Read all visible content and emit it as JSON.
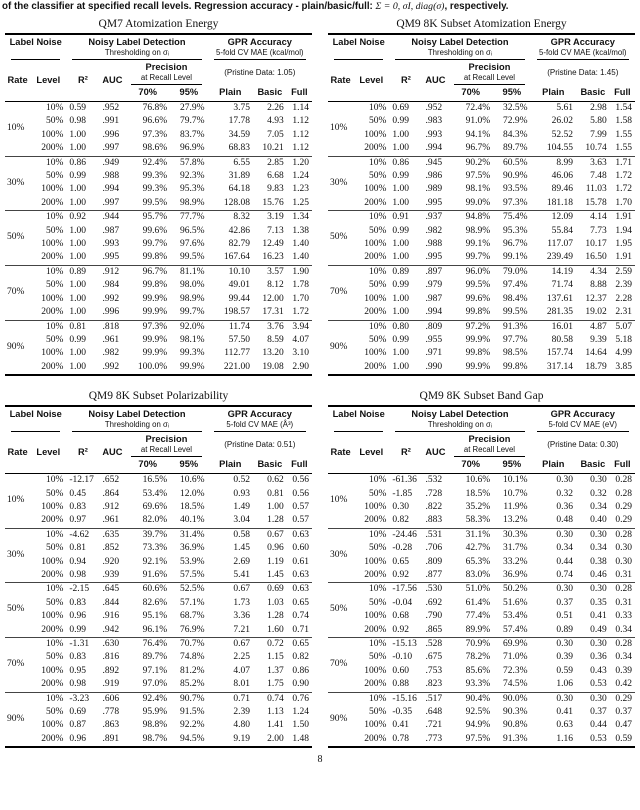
{
  "page": {
    "caption_part1": "of the classifier at specified recall levels. Regression accuracy - plain/basic/full: ",
    "caption_math": "Σ = 0, σI, diag(σ)",
    "caption_part2": ", respectively.",
    "page_number": "8"
  },
  "table_header": {
    "label_noise": "Label Noise",
    "noisy_label_detection": "Noisy Label Detection",
    "thresholding": "Thresholding on σᵢ",
    "gpr_accuracy": "GPR Accuracy",
    "mae_prefix": "5-fold CV MAE",
    "rate": "Rate",
    "level": "Level",
    "r2": "R²",
    "auc": "AUC",
    "precision": "Precision",
    "at_recall_level": "at Recall Level",
    "recall_70": "70%",
    "recall_95": "95%",
    "plain": "Plain",
    "basic": "Basic",
    "full": "Full"
  },
  "tables": [
    {
      "title": "QM7 Atomization Energy",
      "unit": "(kcal/mol)",
      "pristine": "(Pristine Data: 1.05)",
      "groups": [
        {
          "rate": "10%",
          "rows": [
            [
              "10%",
              "0.59",
              ".952",
              "76.8%",
              "27.9%",
              "3.75",
              "2.26",
              "1.14"
            ],
            [
              "50%",
              "0.98",
              ".991",
              "96.6%",
              "79.7%",
              "17.78",
              "4.93",
              "1.12"
            ],
            [
              "100%",
              "1.00",
              ".996",
              "97.3%",
              "83.7%",
              "34.59",
              "7.05",
              "1.12"
            ],
            [
              "200%",
              "1.00",
              ".997",
              "98.6%",
              "96.9%",
              "68.83",
              "10.21",
              "1.12"
            ]
          ]
        },
        {
          "rate": "30%",
          "rows": [
            [
              "10%",
              "0.86",
              ".949",
              "92.4%",
              "57.8%",
              "6.55",
              "2.85",
              "1.20"
            ],
            [
              "50%",
              "0.99",
              ".988",
              "99.3%",
              "92.3%",
              "31.89",
              "6.68",
              "1.24"
            ],
            [
              "100%",
              "1.00",
              ".994",
              "99.3%",
              "95.3%",
              "64.18",
              "9.83",
              "1.23"
            ],
            [
              "200%",
              "1.00",
              ".997",
              "99.5%",
              "98.9%",
              "128.08",
              "15.76",
              "1.25"
            ]
          ]
        },
        {
          "rate": "50%",
          "rows": [
            [
              "10%",
              "0.92",
              ".944",
              "95.7%",
              "77.7%",
              "8.32",
              "3.19",
              "1.34"
            ],
            [
              "50%",
              "1.00",
              ".987",
              "99.6%",
              "96.5%",
              "42.86",
              "7.13",
              "1.38"
            ],
            [
              "100%",
              "1.00",
              ".993",
              "99.7%",
              "97.6%",
              "82.79",
              "12.49",
              "1.40"
            ],
            [
              "200%",
              "1.00",
              ".995",
              "99.8%",
              "99.5%",
              "167.64",
              "16.23",
              "1.40"
            ]
          ]
        },
        {
          "rate": "70%",
          "rows": [
            [
              "10%",
              "0.89",
              ".912",
              "96.7%",
              "81.1%",
              "10.10",
              "3.57",
              "1.90"
            ],
            [
              "50%",
              "1.00",
              ".984",
              "99.8%",
              "98.0%",
              "49.01",
              "8.12",
              "1.78"
            ],
            [
              "100%",
              "1.00",
              ".992",
              "99.9%",
              "98.9%",
              "99.44",
              "12.00",
              "1.70"
            ],
            [
              "200%",
              "1.00",
              ".996",
              "99.9%",
              "99.7%",
              "198.57",
              "17.31",
              "1.72"
            ]
          ]
        },
        {
          "rate": "90%",
          "rows": [
            [
              "10%",
              "0.81",
              ".818",
              "97.3%",
              "92.0%",
              "11.74",
              "3.76",
              "3.94"
            ],
            [
              "50%",
              "0.99",
              ".961",
              "99.9%",
              "98.1%",
              "57.50",
              "8.59",
              "4.07"
            ],
            [
              "100%",
              "1.00",
              ".982",
              "99.9%",
              "99.3%",
              "112.77",
              "13.20",
              "3.10"
            ],
            [
              "200%",
              "1.00",
              ".992",
              "100.0%",
              "99.9%",
              "221.00",
              "19.08",
              "2.90"
            ]
          ]
        }
      ]
    },
    {
      "title": "QM9 8K Subset Atomization Energy",
      "unit": "(kcal/mol)",
      "pristine": "(Pristine Data: 1.45)",
      "groups": [
        {
          "rate": "10%",
          "rows": [
            [
              "10%",
              "0.69",
              ".952",
              "72.4%",
              "32.5%",
              "5.61",
              "2.98",
              "1.54"
            ],
            [
              "50%",
              "0.99",
              ".983",
              "91.0%",
              "72.9%",
              "26.02",
              "5.80",
              "1.58"
            ],
            [
              "100%",
              "1.00",
              ".993",
              "94.1%",
              "84.3%",
              "52.52",
              "7.99",
              "1.55"
            ],
            [
              "200%",
              "1.00",
              ".994",
              "96.7%",
              "89.7%",
              "104.55",
              "10.74",
              "1.55"
            ]
          ]
        },
        {
          "rate": "30%",
          "rows": [
            [
              "10%",
              "0.86",
              ".945",
              "90.2%",
              "60.5%",
              "8.99",
              "3.63",
              "1.71"
            ],
            [
              "50%",
              "0.99",
              ".986",
              "97.5%",
              "90.9%",
              "46.06",
              "7.48",
              "1.72"
            ],
            [
              "100%",
              "1.00",
              ".989",
              "98.1%",
              "93.5%",
              "89.46",
              "11.03",
              "1.72"
            ],
            [
              "200%",
              "1.00",
              ".995",
              "99.0%",
              "97.3%",
              "181.18",
              "15.78",
              "1.70"
            ]
          ]
        },
        {
          "rate": "50%",
          "rows": [
            [
              "10%",
              "0.91",
              ".937",
              "94.8%",
              "75.4%",
              "12.09",
              "4.14",
              "1.91"
            ],
            [
              "50%",
              "0.99",
              ".982",
              "98.9%",
              "95.3%",
              "55.84",
              "7.73",
              "1.94"
            ],
            [
              "100%",
              "1.00",
              ".988",
              "99.1%",
              "96.7%",
              "117.07",
              "10.17",
              "1.95"
            ],
            [
              "200%",
              "1.00",
              ".995",
              "99.7%",
              "99.1%",
              "239.49",
              "16.50",
              "1.91"
            ]
          ]
        },
        {
          "rate": "70%",
          "rows": [
            [
              "10%",
              "0.89",
              ".897",
              "96.0%",
              "79.0%",
              "14.19",
              "4.34",
              "2.59"
            ],
            [
              "50%",
              "0.99",
              ".979",
              "99.5%",
              "97.4%",
              "71.74",
              "8.88",
              "2.39"
            ],
            [
              "100%",
              "1.00",
              ".987",
              "99.6%",
              "98.4%",
              "137.61",
              "12.37",
              "2.28"
            ],
            [
              "200%",
              "1.00",
              ".994",
              "99.8%",
              "99.5%",
              "281.35",
              "19.02",
              "2.31"
            ]
          ]
        },
        {
          "rate": "90%",
          "rows": [
            [
              "10%",
              "0.80",
              ".809",
              "97.2%",
              "91.3%",
              "16.01",
              "4.87",
              "5.07"
            ],
            [
              "50%",
              "0.99",
              ".955",
              "99.9%",
              "97.7%",
              "80.58",
              "9.39",
              "5.18"
            ],
            [
              "100%",
              "1.00",
              ".971",
              "99.8%",
              "98.5%",
              "157.74",
              "14.64",
              "4.99"
            ],
            [
              "200%",
              "1.00",
              ".990",
              "99.9%",
              "99.8%",
              "317.14",
              "18.79",
              "3.85"
            ]
          ]
        }
      ]
    },
    {
      "title": "QM9 8K Subset Polarizability",
      "unit": "(Å³)",
      "pristine": "(Pristine Data: 0.51)",
      "groups": [
        {
          "rate": "10%",
          "rows": [
            [
              "10%",
              "-12.17",
              ".652",
              "16.5%",
              "10.6%",
              "0.52",
              "0.62",
              "0.56"
            ],
            [
              "50%",
              "0.45",
              ".864",
              "53.4%",
              "12.0%",
              "0.93",
              "0.81",
              "0.56"
            ],
            [
              "100%",
              "0.83",
              ".912",
              "69.6%",
              "18.5%",
              "1.49",
              "1.00",
              "0.57"
            ],
            [
              "200%",
              "0.97",
              ".961",
              "82.0%",
              "40.1%",
              "3.04",
              "1.28",
              "0.57"
            ]
          ]
        },
        {
          "rate": "30%",
          "rows": [
            [
              "10%",
              "-4.62",
              ".635",
              "39.7%",
              "31.4%",
              "0.58",
              "0.67",
              "0.63"
            ],
            [
              "50%",
              "0.81",
              ".852",
              "73.3%",
              "36.9%",
              "1.45",
              "0.96",
              "0.60"
            ],
            [
              "100%",
              "0.94",
              ".920",
              "92.1%",
              "53.9%",
              "2.69",
              "1.19",
              "0.61"
            ],
            [
              "200%",
              "0.98",
              ".939",
              "91.6%",
              "57.5%",
              "5.41",
              "1.45",
              "0.63"
            ]
          ]
        },
        {
          "rate": "50%",
          "rows": [
            [
              "10%",
              "-2.15",
              ".645",
              "60.6%",
              "52.5%",
              "0.67",
              "0.69",
              "0.63"
            ],
            [
              "50%",
              "0.83",
              ".844",
              "82.6%",
              "57.1%",
              "1.73",
              "1.03",
              "0.65"
            ],
            [
              "100%",
              "0.96",
              ".916",
              "95.1%",
              "68.7%",
              "3.36",
              "1.28",
              "0.74"
            ],
            [
              "200%",
              "0.99",
              ".942",
              "96.1%",
              "76.9%",
              "7.21",
              "1.60",
              "0.71"
            ]
          ]
        },
        {
          "rate": "70%",
          "rows": [
            [
              "10%",
              "-1.31",
              ".630",
              "76.4%",
              "70.7%",
              "0.67",
              "0.72",
              "0.65"
            ],
            [
              "50%",
              "0.83",
              ".816",
              "89.7%",
              "74.8%",
              "2.25",
              "1.15",
              "0.82"
            ],
            [
              "100%",
              "0.95",
              ".892",
              "97.1%",
              "81.2%",
              "4.07",
              "1.37",
              "0.86"
            ],
            [
              "200%",
              "0.98",
              ".919",
              "97.0%",
              "85.2%",
              "8.01",
              "1.75",
              "0.90"
            ]
          ]
        },
        {
          "rate": "90%",
          "rows": [
            [
              "10%",
              "-3.23",
              ".606",
              "92.4%",
              "90.7%",
              "0.71",
              "0.74",
              "0.76"
            ],
            [
              "50%",
              "0.69",
              ".778",
              "95.9%",
              "91.5%",
              "2.39",
              "1.13",
              "1.24"
            ],
            [
              "100%",
              "0.87",
              ".863",
              "98.8%",
              "92.2%",
              "4.80",
              "1.41",
              "1.50"
            ],
            [
              "200%",
              "0.96",
              ".891",
              "98.7%",
              "94.5%",
              "9.19",
              "2.00",
              "1.48"
            ]
          ]
        }
      ]
    },
    {
      "title": "QM9 8K Subset Band Gap",
      "unit": "(eV)",
      "pristine": "(Pristine Data: 0.30)",
      "groups": [
        {
          "rate": "10%",
          "rows": [
            [
              "10%",
              "-61.36",
              ".532",
              "10.6%",
              "10.1%",
              "0.30",
              "0.30",
              "0.28"
            ],
            [
              "50%",
              "-1.85",
              ".728",
              "18.5%",
              "10.7%",
              "0.32",
              "0.32",
              "0.28"
            ],
            [
              "100%",
              "0.30",
              ".822",
              "35.2%",
              "11.9%",
              "0.36",
              "0.34",
              "0.29"
            ],
            [
              "200%",
              "0.82",
              ".883",
              "58.3%",
              "13.2%",
              "0.48",
              "0.40",
              "0.29"
            ]
          ]
        },
        {
          "rate": "30%",
          "rows": [
            [
              "10%",
              "-24.46",
              ".531",
              "31.1%",
              "30.3%",
              "0.30",
              "0.30",
              "0.28"
            ],
            [
              "50%",
              "-0.28",
              ".706",
              "42.7%",
              "31.7%",
              "0.34",
              "0.34",
              "0.30"
            ],
            [
              "100%",
              "0.65",
              ".809",
              "65.3%",
              "33.2%",
              "0.44",
              "0.38",
              "0.30"
            ],
            [
              "200%",
              "0.92",
              ".877",
              "83.0%",
              "36.9%",
              "0.74",
              "0.46",
              "0.31"
            ]
          ]
        },
        {
          "rate": "50%",
          "rows": [
            [
              "10%",
              "-17.56",
              ".530",
              "51.0%",
              "50.2%",
              "0.30",
              "0.30",
              "0.28"
            ],
            [
              "50%",
              "-0.04",
              ".692",
              "61.4%",
              "51.6%",
              "0.37",
              "0.35",
              "0.31"
            ],
            [
              "100%",
              "0.68",
              ".790",
              "77.4%",
              "53.4%",
              "0.51",
              "0.41",
              "0.33"
            ],
            [
              "200%",
              "0.92",
              ".865",
              "89.9%",
              "57.4%",
              "0.89",
              "0.49",
              "0.34"
            ]
          ]
        },
        {
          "rate": "70%",
          "rows": [
            [
              "10%",
              "-15.13",
              ".528",
              "70.9%",
              "69.9%",
              "0.30",
              "0.30",
              "0.28"
            ],
            [
              "50%",
              "-0.10",
              ".675",
              "78.2%",
              "71.0%",
              "0.39",
              "0.36",
              "0.34"
            ],
            [
              "100%",
              "0.60",
              ".753",
              "85.6%",
              "72.3%",
              "0.59",
              "0.43",
              "0.39"
            ],
            [
              "200%",
              "0.88",
              ".823",
              "93.3%",
              "74.5%",
              "1.06",
              "0.53",
              "0.42"
            ]
          ]
        },
        {
          "rate": "90%",
          "rows": [
            [
              "10%",
              "-15.16",
              ".517",
              "90.4%",
              "90.0%",
              "0.30",
              "0.30",
              "0.29"
            ],
            [
              "50%",
              "-0.35",
              ".648",
              "92.5%",
              "90.3%",
              "0.41",
              "0.37",
              "0.37"
            ],
            [
              "100%",
              "0.41",
              ".721",
              "94.9%",
              "90.8%",
              "0.63",
              "0.44",
              "0.47"
            ],
            [
              "200%",
              "0.78",
              ".773",
              "97.5%",
              "91.3%",
              "1.16",
              "0.53",
              "0.59"
            ]
          ]
        }
      ]
    }
  ]
}
